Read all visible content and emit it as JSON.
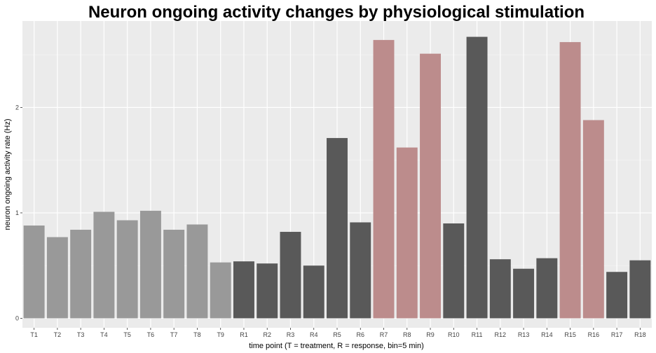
{
  "chart_data": {
    "type": "bar",
    "title": "Neuron ongoing activity changes by physiological stimulation",
    "xlabel": "time point (T = treatment, R = response, bin=5 min)",
    "ylabel": "neuron ongoing activity rate (Hz)",
    "categories": [
      "T1",
      "T2",
      "T3",
      "T4",
      "T5",
      "T6",
      "T7",
      "T8",
      "T9",
      "R1",
      "R2",
      "R3",
      "R4",
      "R5",
      "R6",
      "R7",
      "R8",
      "R9",
      "R10",
      "R11",
      "R12",
      "R13",
      "R14",
      "R15",
      "R16",
      "R17",
      "R18"
    ],
    "values": [
      0.88,
      0.77,
      0.84,
      1.01,
      0.93,
      1.02,
      0.84,
      0.89,
      0.53,
      0.54,
      0.52,
      0.82,
      0.5,
      1.71,
      0.91,
      2.64,
      1.62,
      2.51,
      0.9,
      2.67,
      0.56,
      0.47,
      0.57,
      2.62,
      1.88,
      0.44,
      0.55
    ],
    "groups": [
      "treatment",
      "treatment",
      "treatment",
      "treatment",
      "treatment",
      "treatment",
      "treatment",
      "treatment",
      "treatment",
      "response",
      "response",
      "response",
      "response",
      "response",
      "response",
      "highlight",
      "highlight",
      "highlight",
      "response",
      "response",
      "response",
      "response",
      "response",
      "highlight",
      "highlight",
      "response",
      "response"
    ],
    "colors": {
      "treatment": "#999999",
      "response": "#595959",
      "highlight": "#bc8c8c"
    },
    "yticks": [
      0,
      1,
      2
    ],
    "ylim": [
      -0.09,
      2.82
    ],
    "grid": true,
    "legend": "none"
  }
}
